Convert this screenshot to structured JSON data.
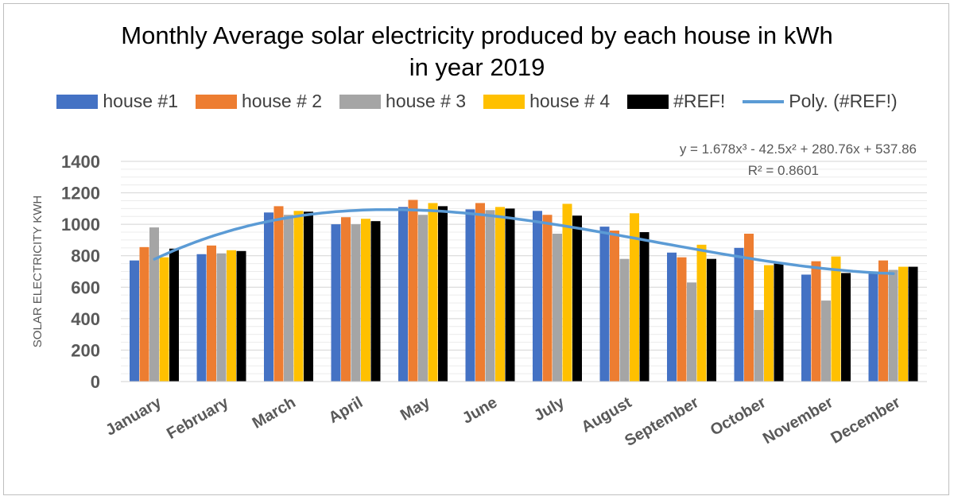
{
  "title_line1": "Monthly Average solar electricity produced by each house in kWh",
  "title_line2": "in year 2019",
  "legend": [
    {
      "label": "house #1",
      "color": "#4472C4",
      "kind": "bar"
    },
    {
      "label": "house # 2",
      "color": "#ED7D31",
      "kind": "bar"
    },
    {
      "label": "house # 3",
      "color": "#A5A5A5",
      "kind": "bar"
    },
    {
      "label": "house # 4",
      "color": "#FFC000",
      "kind": "bar"
    },
    {
      "label": "#REF!",
      "color": "#000000",
      "kind": "bar"
    },
    {
      "label": "Poly. (#REF!)",
      "color": "#5B9BD5",
      "kind": "line"
    }
  ],
  "trendline": {
    "equation": "y = 1.678x³ - 42.5x² + 280.76x + 537.86",
    "r_squared": "R² = 0.8601",
    "coefficients": [
      1.678,
      -42.5,
      280.76,
      537.86
    ]
  },
  "chart_data": {
    "type": "bar",
    "title": "Monthly Average solar electricity produced by each house in kWh in year 2019",
    "xlabel": "",
    "ylabel": "SOLAR ELECTRICITY  KWH",
    "ylim": [
      0,
      1400
    ],
    "yticks": [
      0,
      200,
      400,
      600,
      800,
      1000,
      1200,
      1400
    ],
    "grid": true,
    "legend_position": "top",
    "categories": [
      "January",
      "February",
      "March",
      "April",
      "May",
      "June",
      "July",
      "August",
      "September",
      "October",
      "November",
      "December"
    ],
    "series": [
      {
        "name": "house #1",
        "color": "#4472C4",
        "values": [
          770,
          810,
          1075,
          1000,
          1110,
          1095,
          1085,
          985,
          820,
          850,
          680,
          685
        ]
      },
      {
        "name": "house # 2",
        "color": "#ED7D31",
        "values": [
          855,
          865,
          1115,
          1045,
          1155,
          1135,
          1060,
          960,
          790,
          940,
          765,
          770
        ]
      },
      {
        "name": "house # 3",
        "color": "#A5A5A5",
        "values": [
          980,
          815,
          1060,
          1000,
          1060,
          1090,
          940,
          780,
          630,
          455,
          515,
          710
        ]
      },
      {
        "name": "house # 4",
        "color": "#FFC000",
        "values": [
          790,
          835,
          1085,
          1035,
          1135,
          1110,
          1130,
          1070,
          870,
          740,
          795,
          730
        ]
      },
      {
        "name": "#REF!",
        "color": "#000000",
        "values": [
          845,
          830,
          1080,
          1020,
          1115,
          1100,
          1055,
          950,
          780,
          750,
          690,
          730
        ]
      }
    ],
    "trend_series": "Poly. (#REF!)"
  }
}
